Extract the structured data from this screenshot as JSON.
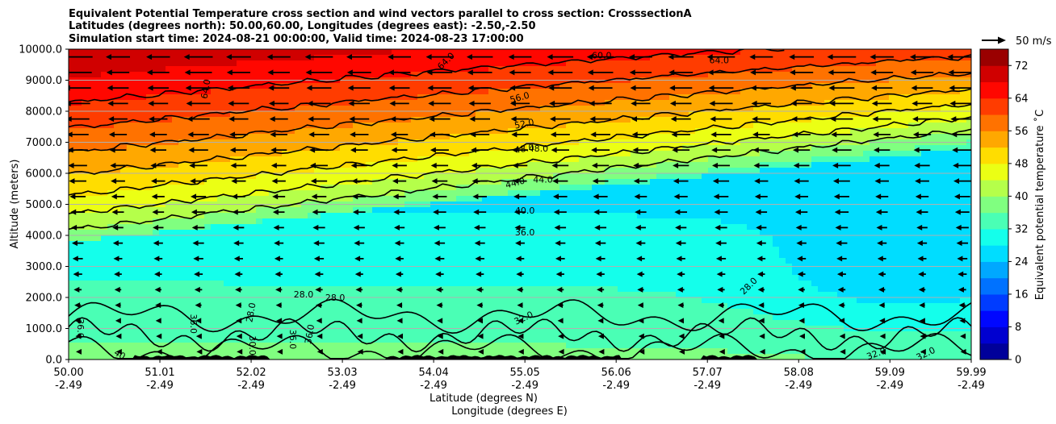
{
  "chart_data": {
    "type": "heatmap",
    "title_lines": [
      "Equivalent Potential Temperature cross section and wind vectors parallel to cross section: CrosssectionA",
      "Latitudes (degrees north): 50.00,60.00, Longitudes (degrees east): -2.50,-2.50",
      "Simulation start time: 2024-08-21 00:00:00, Valid time: 2024-08-23 17:00:00"
    ],
    "ylabel": "Altitude (meters)",
    "xlabel_lines": [
      "Latitude (degrees N)",
      "Longitude (degrees E)"
    ],
    "colorbar_label": "Equivalent potential temperature $^\\circ$C",
    "colorbar_label_display": "Equivalent potential temperature ˚C",
    "quiver_key_label": "50 m/s",
    "xlim": [
      50.0,
      59.99
    ],
    "ylim": [
      0,
      10000
    ],
    "x_ticks": [
      {
        "lat": "50.00",
        "lon": "-2.49"
      },
      {
        "lat": "51.01",
        "lon": "-2.49"
      },
      {
        "lat": "52.02",
        "lon": "-2.49"
      },
      {
        "lat": "53.03",
        "lon": "-2.49"
      },
      {
        "lat": "54.04",
        "lon": "-2.49"
      },
      {
        "lat": "55.05",
        "lon": "-2.49"
      },
      {
        "lat": "56.06",
        "lon": "-2.49"
      },
      {
        "lat": "57.07",
        "lon": "-2.49"
      },
      {
        "lat": "58.08",
        "lon": "-2.49"
      },
      {
        "lat": "59.09",
        "lon": "-2.49"
      },
      {
        "lat": "59.99",
        "lon": "-2.49"
      }
    ],
    "y_ticks": [
      "0.0",
      "1000.0",
      "2000.0",
      "3000.0",
      "4000.0",
      "5000.0",
      "6000.0",
      "7000.0",
      "8000.0",
      "9000.0",
      "10000.0"
    ],
    "colorbar_ticks": [
      "0",
      "8",
      "16",
      "24",
      "32",
      "40",
      "48",
      "56",
      "64",
      "72"
    ],
    "colorbar_range": [
      0,
      76
    ],
    "colormap": "jet",
    "grid": "horizontal",
    "contour_labels": [
      {
        "text": "64.0",
        "lat": 54.2,
        "alt": 9550,
        "rot": -45
      },
      {
        "text": "64.0",
        "lat": 51.55,
        "alt": 8700,
        "rot": -80
      },
      {
        "text": "64.0",
        "lat": 57.2,
        "alt": 9550,
        "rot": 0
      },
      {
        "text": "60.0",
        "lat": 55.9,
        "alt": 9700,
        "rot": 0
      },
      {
        "text": "56.0",
        "lat": 55.0,
        "alt": 8350,
        "rot": -15
      },
      {
        "text": "52.0",
        "lat": 55.05,
        "alt": 7500,
        "rot": -12
      },
      {
        "text": "48.0",
        "lat": 55.05,
        "alt": 6700,
        "rot": -10
      },
      {
        "text": "48.0",
        "lat": 55.2,
        "alt": 6700,
        "rot": 0
      },
      {
        "text": "44.0",
        "lat": 54.95,
        "alt": 5600,
        "rot": -15
      },
      {
        "text": "44.0",
        "lat": 55.25,
        "alt": 5700,
        "rot": 0
      },
      {
        "text": "40.0",
        "lat": 55.05,
        "alt": 4700,
        "rot": 0
      },
      {
        "text": "36.0",
        "lat": 55.05,
        "alt": 4000,
        "rot": 0
      },
      {
        "text": "28.0",
        "lat": 52.6,
        "alt": 2000,
        "rot": 0
      },
      {
        "text": "28.0",
        "lat": 52.95,
        "alt": 1900,
        "rot": 0
      },
      {
        "text": "28.0",
        "lat": 57.55,
        "alt": 2300,
        "rot": -45
      },
      {
        "text": "28.0",
        "lat": 52.05,
        "alt": 1500,
        "rot": -80
      },
      {
        "text": "32.0",
        "lat": 55.05,
        "alt": 1250,
        "rot": -25
      },
      {
        "text": "32.0",
        "lat": 58.95,
        "alt": 100,
        "rot": -20
      },
      {
        "text": "32.0",
        "lat": 59.5,
        "alt": 100,
        "rot": -25
      },
      {
        "text": "36.0",
        "lat": 50.1,
        "alt": 1000,
        "rot": 90
      },
      {
        "text": "36.0",
        "lat": 51.35,
        "alt": 1150,
        "rot": 90
      },
      {
        "text": "36.0",
        "lat": 52.45,
        "alt": 650,
        "rot": 90
      },
      {
        "text": "36.0",
        "lat": 52.7,
        "alt": 800,
        "rot": -80
      },
      {
        "text": "30.0",
        "lat": 52.0,
        "alt": 450,
        "rot": 90
      },
      {
        "text": "40",
        "lat": 50.55,
        "alt": 80,
        "rot": 30
      }
    ]
  }
}
